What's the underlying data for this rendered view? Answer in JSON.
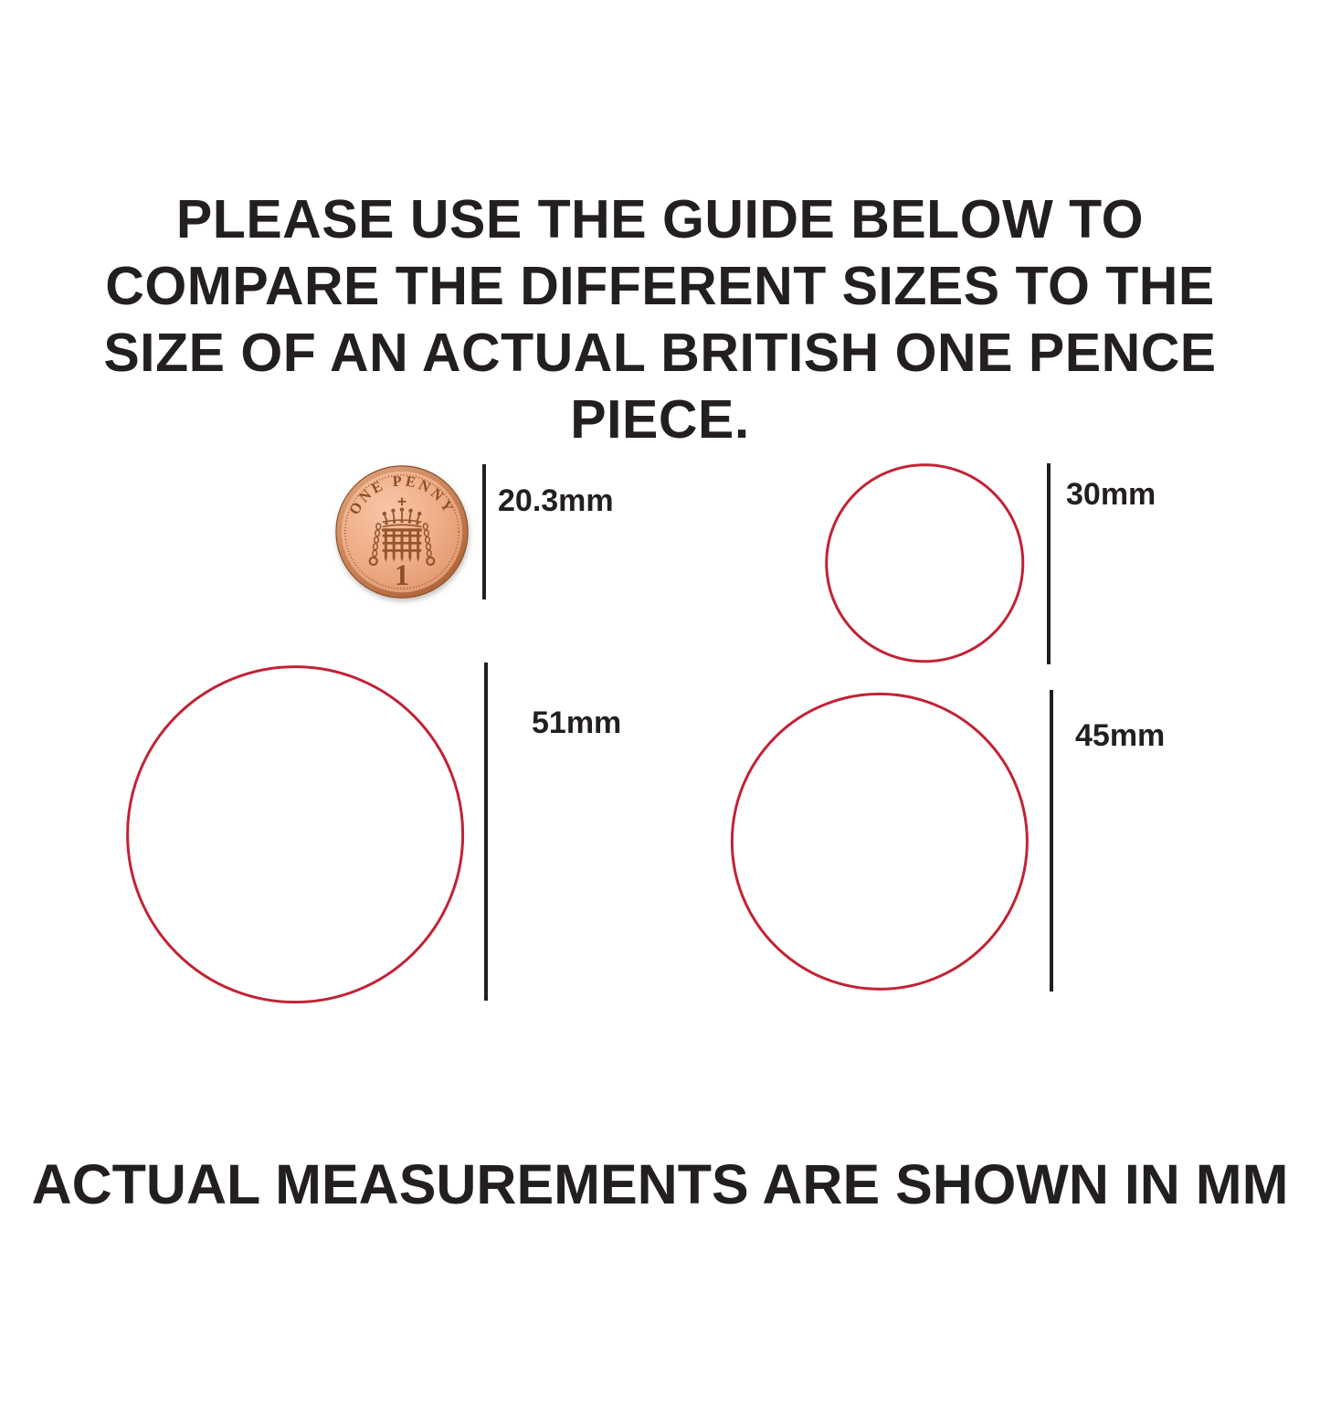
{
  "title": {
    "lines": [
      "PLEASE USE THE GUIDE BELOW TO",
      "COMPARE THE DIFFERENT SIZES TO THE",
      "SIZE OF AN ACTUAL BRITISH ONE PENCE",
      "PIECE."
    ]
  },
  "footer": {
    "text": "ACTUAL MEASUREMENTS ARE SHOWN IN MM"
  },
  "coin": {
    "legend_top": "ONE PENNY",
    "denomination": "1"
  },
  "sizes": [
    {
      "id": "penny",
      "type": "coin",
      "mm": 20.3,
      "label": "20.3mm"
    },
    {
      "id": "c30",
      "type": "circle",
      "mm": 30,
      "label": "30mm"
    },
    {
      "id": "c51",
      "type": "circle",
      "mm": 51,
      "label": "51mm"
    },
    {
      "id": "c45",
      "type": "circle",
      "mm": 45,
      "label": "45mm"
    }
  ],
  "colors": {
    "text": "#231f20",
    "measure_line": "#231f20",
    "circle_outline": "#c22235",
    "coin_face": "#efad88",
    "coin_face_highlight": "#f7c6a8",
    "coin_rim": "#b06438",
    "coin_engraving": "#96542b"
  }
}
